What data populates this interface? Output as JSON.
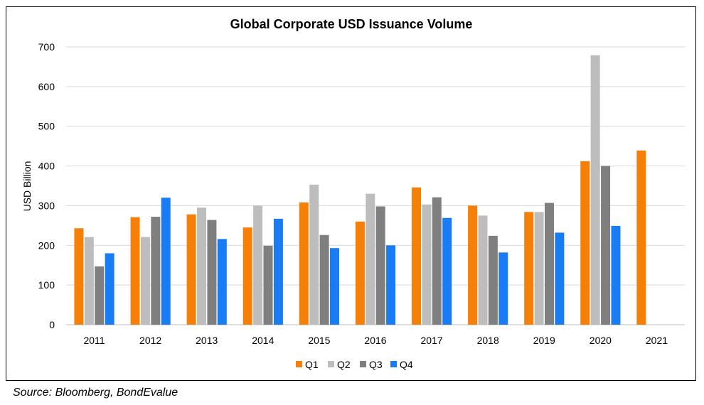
{
  "chart_data": {
    "type": "bar",
    "title": "Global Corporate USD Issuance Volume",
    "xlabel": "",
    "ylabel": "USD Billion",
    "ylim": [
      0,
      700
    ],
    "yticks": [
      0,
      100,
      200,
      300,
      400,
      500,
      600,
      700
    ],
    "grid": true,
    "legend_position": "bottom",
    "categories": [
      "2011",
      "2012",
      "2013",
      "2014",
      "2015",
      "2016",
      "2017",
      "2018",
      "2019",
      "2020",
      "2021"
    ],
    "series": [
      {
        "name": "Q1",
        "color": "#F57F07",
        "values": [
          243,
          271,
          278,
          245,
          308,
          260,
          346,
          300,
          284,
          412,
          439
        ]
      },
      {
        "name": "Q2",
        "color": "#BDBDBD",
        "values": [
          221,
          221,
          295,
          300,
          353,
          330,
          303,
          275,
          284,
          679,
          null
        ]
      },
      {
        "name": "Q3",
        "color": "#7F7F7F",
        "values": [
          147,
          272,
          264,
          199,
          226,
          298,
          321,
          224,
          307,
          400,
          null
        ]
      },
      {
        "name": "Q4",
        "color": "#1A7CF5",
        "values": [
          180,
          320,
          216,
          267,
          193,
          200,
          269,
          182,
          232,
          249,
          null
        ]
      }
    ]
  },
  "source": "Source: Bloomberg, BondEvalue"
}
